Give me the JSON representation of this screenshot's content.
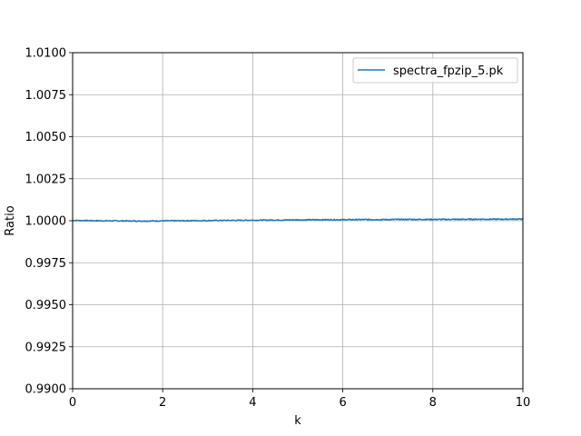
{
  "chart_data": {
    "type": "line",
    "title": "",
    "xlabel": "k",
    "ylabel": "Ratio",
    "xlim": [
      0,
      10
    ],
    "ylim": [
      0.99,
      1.01
    ],
    "xticks": [
      0,
      2,
      4,
      6,
      8,
      10
    ],
    "xtick_labels": [
      "0",
      "2",
      "4",
      "6",
      "8",
      "10"
    ],
    "yticks": [
      0.99,
      0.9925,
      0.995,
      0.9975,
      1.0,
      1.0025,
      1.005,
      1.0075,
      1.01
    ],
    "ytick_labels": [
      "0.9900",
      "0.9925",
      "0.9950",
      "0.9975",
      "1.0000",
      "1.0025",
      "1.0050",
      "1.0075",
      "1.0100"
    ],
    "grid": true,
    "legend_position": "top-right",
    "series": [
      {
        "name": "spectra_fpzip_5.pk",
        "color": "#1f77b4",
        "x": [
          0,
          0.5,
          1,
          1.5,
          2,
          2.5,
          3,
          3.5,
          4,
          4.5,
          5,
          5.5,
          6,
          6.5,
          7,
          7.5,
          8,
          8.5,
          9,
          9.5,
          10
        ],
        "y": [
          1.00002,
          1.0,
          0.99999,
          0.99998,
          0.99999,
          1.0,
          1.00001,
          1.00002,
          1.00003,
          1.00004,
          1.00005,
          1.00006,
          1.00006,
          1.00007,
          1.00007,
          1.00008,
          1.00008,
          1.00008,
          1.00009,
          1.00009,
          1.0001
        ]
      }
    ]
  }
}
